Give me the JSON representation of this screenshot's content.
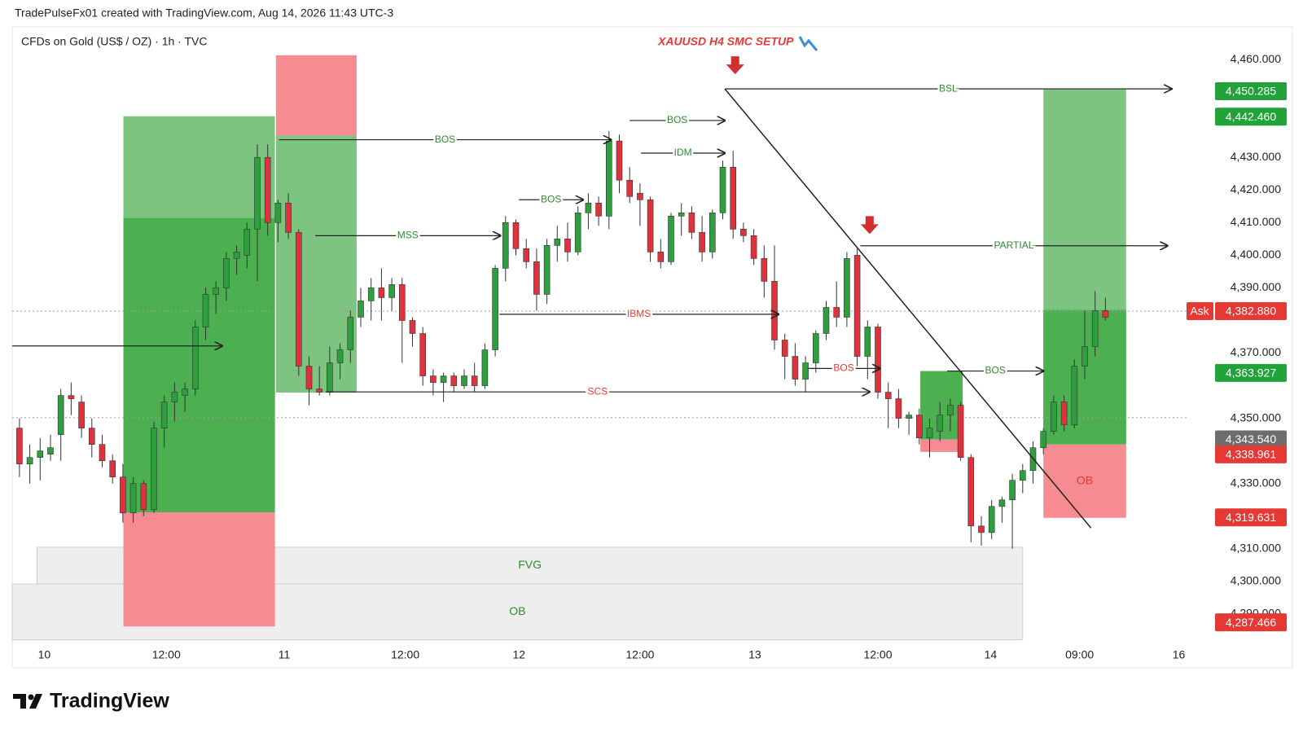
{
  "page": {
    "credit": "TradePulseFx01 created with TradingView.com, Aug 14, 2026 11:43 UTC-3",
    "brand": "TradingView"
  },
  "chart_data": {
    "type": "candlestick",
    "title": "XAUUSD H4 SMC SETUP",
    "symbol": "CFDs on Gold (US$ / OZ) · 1h · TVC",
    "up_color": "#2e9e3e",
    "down_color": "#e0323d",
    "grid": false,
    "open": [
      4347,
      4336,
      4338,
      4339,
      4345,
      4357,
      4355,
      4347,
      4342,
      4337,
      4332,
      4321,
      4330,
      4322,
      4347,
      4355,
      4357,
      4359,
      4378,
      4388,
      4390,
      4399,
      4400,
      4408,
      4430,
      4410,
      4416,
      4407,
      4366,
      4359,
      4358,
      4367,
      4371,
      4381,
      4386,
      4390,
      4387,
      4391,
      4380,
      4376,
      4363,
      4361,
      4363,
      4360,
      4363,
      4360,
      4371,
      4396,
      4410,
      4402,
      4398,
      4388,
      4403,
      4405,
      4401,
      4413,
      4416,
      4412,
      4435,
      4423,
      4419,
      4417,
      4401,
      4398,
      4412,
      4413,
      4407,
      4401,
      4413,
      4427,
      4408,
      4406,
      4399,
      4392,
      4374,
      4369,
      4362,
      4367,
      4376,
      4384,
      4381,
      4400,
      4369,
      4378,
      4358,
      4356,
      4350,
      4351,
      4344,
      4346,
      4351,
      4354,
      4338,
      4317,
      4315,
      4323,
      4325,
      4331,
      4334,
      4341,
      4346,
      4355,
      4348,
      4366,
      4372,
      4383
    ],
    "high": [
      4350,
      4342,
      4344,
      4345,
      4359,
      4361,
      4357,
      4350,
      4345,
      4339,
      4336,
      4332,
      4331,
      4349,
      4357,
      4361,
      4361,
      4380,
      4390,
      4392,
      4401,
      4403,
      4410,
      4434,
      4434,
      4417,
      4419,
      4408,
      4369,
      4366,
      4372,
      4373,
      4383,
      4390,
      4393,
      4396,
      4393,
      4393,
      4381,
      4378,
      4365,
      4364,
      4364,
      4365,
      4367,
      4373,
      4397,
      4412,
      4411,
      4405,
      4402,
      4405,
      4409,
      4410,
      4415,
      4419,
      4418,
      4438,
      4437,
      4427,
      4422,
      4418,
      4405,
      4413,
      4416,
      4415,
      4412,
      4414,
      4429,
      4432,
      4410,
      4408,
      4403,
      4403,
      4376,
      4373,
      4369,
      4377,
      4386,
      4392,
      4401,
      4402,
      4380,
      4379,
      4361,
      4359,
      4352,
      4353,
      4350,
      4355,
      4356,
      4355,
      4339,
      4320,
      4325,
      4326,
      4333,
      4336,
      4343,
      4347,
      4357,
      4357,
      4368,
      4383,
      4389,
      4387
    ],
    "low": [
      4332,
      4330,
      4331,
      4337,
      4337,
      4351,
      4344,
      4338,
      4335,
      4330,
      4318,
      4318,
      4320,
      4321,
      4341,
      4349,
      4352,
      4357,
      4374,
      4382,
      4386,
      4394,
      4396,
      4392,
      4406,
      4404,
      4405,
      4363,
      4354,
      4357,
      4357,
      4362,
      4367,
      4378,
      4380,
      4380,
      4383,
      4367,
      4372,
      4360,
      4357,
      4355,
      4358,
      4359,
      4358,
      4359,
      4369,
      4392,
      4400,
      4396,
      4383,
      4385,
      4398,
      4398,
      4400,
      4408,
      4409,
      4408,
      4419,
      4416,
      4409,
      4398,
      4396,
      4397,
      4406,
      4405,
      4398,
      4399,
      4411,
      4405,
      4404,
      4397,
      4387,
      4371,
      4362,
      4360,
      4358,
      4364,
      4374,
      4378,
      4378,
      4366,
      4362,
      4356,
      4347,
      4347,
      4345,
      4342,
      4338,
      4343,
      4346,
      4337,
      4312,
      4311,
      4313,
      4318,
      4310,
      4327,
      4330,
      4339,
      4345,
      4346,
      4347,
      4362,
      4369,
      4380
    ],
    "close": [
      4336,
      4338,
      4340,
      4341,
      4357,
      4356,
      4347,
      4342,
      4337,
      4332,
      4321,
      4330,
      4322,
      4347,
      4355,
      4358,
      4359,
      4378,
      4388,
      4390,
      4399,
      4401,
      4408,
      4430,
      4410,
      4416,
      4407,
      4366,
      4359,
      4358,
      4367,
      4371,
      4381,
      4386,
      4390,
      4387,
      4391,
      4380,
      4376,
      4363,
      4361,
      4363,
      4360,
      4363,
      4360,
      4371,
      4396,
      4410,
      4402,
      4398,
      4388,
      4403,
      4405,
      4401,
      4413,
      4416,
      4412,
      4435,
      4423,
      4418,
      4417,
      4401,
      4398,
      4412,
      4413,
      4407,
      4401,
      4413,
      4427,
      4408,
      4406,
      4399,
      4392,
      4374,
      4369,
      4362,
      4367,
      4376,
      4384,
      4381,
      4399,
      4369,
      4378,
      4358,
      4356,
      4350,
      4351,
      4344,
      4347,
      4351,
      4354,
      4338,
      4317,
      4315,
      4323,
      4325,
      4331,
      4334,
      4341,
      4346,
      4355,
      4348,
      4366,
      4372,
      4383,
      4381
    ],
    "xlim": [
      -0.7,
      113
    ],
    "xticks": [
      {
        "value": 2.4,
        "label": "10"
      },
      {
        "value": 14.2,
        "label": "12:00"
      },
      {
        "value": 25.6,
        "label": "11"
      },
      {
        "value": 37.3,
        "label": "12:00"
      },
      {
        "value": 48.3,
        "label": "12"
      },
      {
        "value": 60.0,
        "label": "12:00"
      },
      {
        "value": 71.1,
        "label": "13"
      },
      {
        "value": 83.0,
        "label": "12:00"
      },
      {
        "value": 93.9,
        "label": "14"
      },
      {
        "value": 102.5,
        "label": "09:00"
      },
      {
        "value": 112.1,
        "label": "16"
      }
    ],
    "ylim": [
      4282,
      4470
    ],
    "yticks": [
      {
        "value": 4460,
        "label": "4,460.000"
      },
      {
        "value": 4430,
        "label": "4,430.000"
      },
      {
        "value": 4420,
        "label": "4,420.000"
      },
      {
        "value": 4410,
        "label": "4,410.000"
      },
      {
        "value": 4400,
        "label": "4,400.000"
      },
      {
        "value": 4390,
        "label": "4,390.000"
      },
      {
        "value": 4370,
        "label": "4,370.000"
      },
      {
        "value": 4350,
        "label": "4,350.000"
      },
      {
        "value": 4330,
        "label": "4,330.000"
      },
      {
        "value": 4310,
        "label": "4,310.000"
      },
      {
        "value": 4300,
        "label": "4,300.000"
      },
      {
        "value": 4290,
        "label": "4,290.000"
      }
    ],
    "price_tags": [
      {
        "value": 4450.285,
        "label": "4,450.285",
        "color": "#22a33a"
      },
      {
        "value": 4442.46,
        "label": "4,442.460",
        "color": "#22a33a"
      },
      {
        "value": 4382.88,
        "label": "4,382.880",
        "color": "#e53935",
        "prefix": "Ask"
      },
      {
        "value": 4363.927,
        "label": "4,363.927",
        "color": "#22a33a"
      },
      {
        "value": 4343.54,
        "label": "4,343.540",
        "color": "#6d6d6d"
      },
      {
        "value": 4338.961,
        "label": "4,338.961",
        "color": "#e53935"
      },
      {
        "value": 4319.631,
        "label": "4,319.631",
        "color": "#e53935"
      },
      {
        "value": 4287.466,
        "label": "4,287.466",
        "color": "#e53935"
      }
    ],
    "dotted_lines": [
      4382.88,
      4350.2
    ],
    "zones": [
      {
        "x": [
          1.7,
          97
        ],
        "y": [
          4299.2,
          4310.5
        ],
        "color": "#eeeeee",
        "label": "FVG",
        "label_color": "#2e8b2e"
      },
      {
        "x": [
          -0.7,
          97
        ],
        "y": [
          4282.1,
          4299.2
        ],
        "color": "#eeeeee",
        "label": "OB",
        "label_color": "#2e8b2e"
      },
      {
        "x": [
          10.05,
          24.7
        ],
        "y": [
          4321.2,
          4442.6
        ],
        "color": "#7cc47f"
      },
      {
        "x": [
          10.05,
          24.7
        ],
        "y": [
          4321.2,
          4411.4
        ],
        "color": "#4caf50"
      },
      {
        "x": [
          10.05,
          24.7
        ],
        "y": [
          4286.2,
          4321.2
        ],
        "color": "#f78b92"
      },
      {
        "x": [
          24.8,
          32.6
        ],
        "y": [
          4436.7,
          4461.3
        ],
        "color": "#f78b92"
      },
      {
        "x": [
          24.8,
          32.6
        ],
        "y": [
          4357.9,
          4436.7
        ],
        "color": "#7cc47f"
      },
      {
        "x": [
          87.1,
          91.2
        ],
        "y": [
          4343.5,
          4364.5
        ],
        "color": "#4caf50"
      },
      {
        "x": [
          87.1,
          91.0
        ],
        "y": [
          4339.7,
          4343.5
        ],
        "color": "#f78b92"
      },
      {
        "x": [
          99,
          107
        ],
        "y": [
          4342,
          4450.8
        ],
        "color": "#7cc47f"
      },
      {
        "x": [
          99,
          107
        ],
        "y": [
          4342,
          4383.2
        ],
        "color": "#4caf50"
      },
      {
        "x": [
          99,
          107
        ],
        "y": [
          4319.5,
          4342
        ],
        "color": "#f78b92",
        "label": "OB",
        "label_color": "#e53935"
      }
    ],
    "annotations": [
      {
        "text": "BOS",
        "x": [
          25.1,
          57.2
        ],
        "y": 4435.4,
        "color": "#2e8b2e"
      },
      {
        "text": "MSS",
        "x": [
          28.6,
          46.5
        ],
        "y": 4406.0,
        "color": "#2e8b2e"
      },
      {
        "text": "BOS",
        "x": [
          48.3,
          54.5
        ],
        "y": 4417.0,
        "color": "#2e8b2e"
      },
      {
        "text": "BOS",
        "x": [
          59.0,
          68.2
        ],
        "y": 4441.3,
        "color": "#2e8b2e"
      },
      {
        "text": "IDM",
        "x": [
          60.1,
          68.2
        ],
        "y": 4431.3,
        "color": "#2e8b2e"
      },
      {
        "text": "IBMS",
        "x": [
          46.4,
          73.4
        ],
        "y": 4381.9,
        "color": "#e53935"
      },
      {
        "text": "SCS",
        "x": [
          29.6,
          82.2
        ],
        "y": 4358.1,
        "color": "#e53935"
      },
      {
        "text": "BSL",
        "x": [
          68.2,
          111.4
        ],
        "y": 4451.0,
        "color": "#2e8b2e"
      },
      {
        "text": "PARTIAL",
        "x": [
          81.3,
          111.0
        ],
        "y": 4402.9,
        "color": "#2e8b2e"
      },
      {
        "text": "BOS",
        "x": [
          76.2,
          83.2
        ],
        "y": 4365.3,
        "color": "#e53935"
      },
      {
        "text": "BOS",
        "x": [
          89.7,
          99.0
        ],
        "y": 4364.5,
        "color": "#2e8b2e"
      },
      {
        "x": [
          -0.7,
          19.6
        ],
        "y": 4372.2,
        "color": "#222222"
      }
    ],
    "trend_line": {
      "x": [
        68.2,
        103.6
      ],
      "y": [
        4451.0,
        4316.4
      ]
    },
    "markers": [
      {
        "x": 69.2,
        "y": 4455.5,
        "color": "#d32f2f"
      },
      {
        "x": 82.2,
        "y": 4406.5,
        "color": "#d32f2f"
      }
    ]
  }
}
